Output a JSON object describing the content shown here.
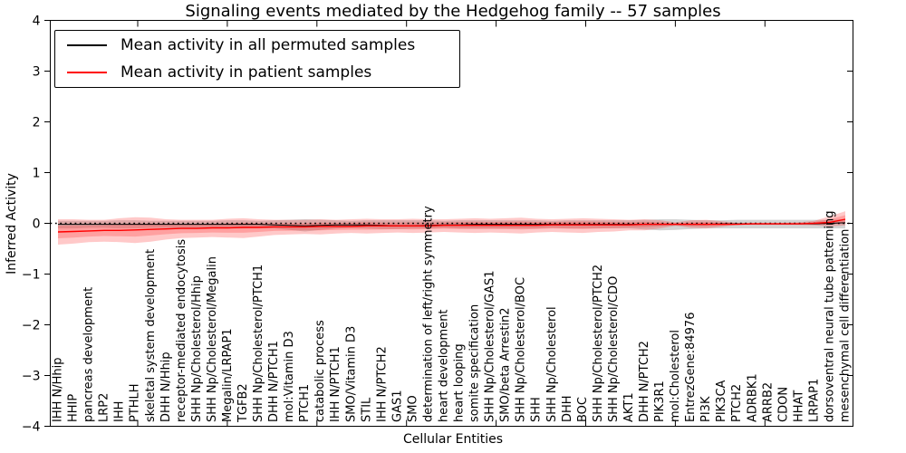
{
  "chart_data": {
    "type": "line",
    "title": "Signaling events mediated by the Hedgehog family -- 57 samples",
    "xlabel": "Cellular Entities",
    "ylabel": "Inferred Activity",
    "ylim": [
      -4,
      4
    ],
    "yticks": [
      4,
      3,
      2,
      1,
      0,
      -1,
      -2,
      -3,
      -4
    ],
    "grid": false,
    "zero_line": {
      "style": "dotted",
      "color": "#000000",
      "y": 0
    },
    "legend": {
      "position": "upper-left",
      "entries": [
        {
          "label": "Mean activity in all permuted samples",
          "color": "#000000"
        },
        {
          "label": "Mean activity in patient samples",
          "color": "#ff0000"
        }
      ]
    },
    "categories": [
      "IHH N/Hhip",
      "HHIP",
      "pancreas development",
      "LRP2",
      "IHH",
      "PTHLH",
      "skeletal system development",
      "DHH N/Hhip",
      "receptor-mediated endocytosis",
      "SHH Np/Cholesterol/Hhip",
      "SHH Np/Cholesterol/Megalin",
      "Megalin/LRPAP1",
      "TGFB2",
      "SHH Np/Cholesterol/PTCH1",
      "DHH N/PTCH1",
      "mol:Vitamin D3",
      "PTCH1",
      "catabolic process",
      "IHH N/PTCH1",
      "SMO/Vitamin D3",
      "STIL",
      "IHH N/PTCH2",
      "GAS1",
      "SMO",
      "determination of left/right symmetry",
      "heart development",
      "heart looping",
      "somite specification",
      "SHH Np/Cholesterol/GAS1",
      "SMO/beta Arrestin2",
      "SHH Np/Cholesterol/BOC",
      "SHH",
      "SHH Np/Cholesterol",
      "DHH",
      "BOC",
      "SHH Np/Cholesterol/PTCH2",
      "SHH Np/Cholesterol/CDO",
      "AKT1",
      "DHH N/PTCH2",
      "PIK3R1",
      "mol:Cholesterol",
      "EntrezGene:84976",
      "PI3K",
      "PIK3CA",
      "PTCH2",
      "ADRBK1",
      "ARRB2",
      "CDON",
      "HHAT",
      "LRPAP1",
      "dorsoventral neural tube patterning",
      "mesenchymal cell differentiation"
    ],
    "series": [
      {
        "name": "Mean activity in all permuted samples",
        "color": "#000000",
        "band_color": "rgba(130,130,130,0.35)",
        "values": [
          -0.02,
          -0.02,
          -0.02,
          -0.02,
          -0.02,
          -0.02,
          -0.02,
          -0.02,
          -0.02,
          -0.02,
          -0.02,
          -0.02,
          -0.02,
          -0.02,
          -0.03,
          -0.04,
          -0.05,
          -0.04,
          -0.03,
          -0.03,
          -0.03,
          -0.04,
          -0.05,
          -0.05,
          -0.04,
          -0.03,
          -0.03,
          -0.02,
          -0.02,
          -0.02,
          -0.02,
          -0.02,
          -0.02,
          -0.02,
          -0.02,
          -0.02,
          -0.02,
          -0.02,
          -0.02,
          -0.02,
          -0.02,
          -0.02,
          -0.02,
          -0.01,
          -0.01,
          -0.01,
          -0.01,
          -0.01,
          -0.01,
          -0.01,
          0.0,
          0.01
        ],
        "band_upper": [
          0.05,
          0.05,
          0.05,
          0.05,
          0.06,
          0.06,
          0.05,
          0.05,
          0.05,
          0.05,
          0.05,
          0.06,
          0.06,
          0.05,
          0.06,
          0.07,
          0.08,
          0.07,
          0.06,
          0.05,
          0.06,
          0.06,
          0.06,
          0.06,
          0.06,
          0.05,
          0.06,
          0.06,
          0.06,
          0.06,
          0.06,
          0.06,
          0.05,
          0.06,
          0.06,
          0.06,
          0.06,
          0.06,
          0.07,
          0.08,
          0.08,
          0.07,
          0.06,
          0.06,
          0.07,
          0.07,
          0.07,
          0.07,
          0.07,
          0.07,
          0.07,
          0.08
        ],
        "band_lower": [
          -0.1,
          -0.1,
          -0.09,
          -0.09,
          -0.1,
          -0.1,
          -0.09,
          -0.09,
          -0.09,
          -0.09,
          -0.09,
          -0.1,
          -0.1,
          -0.09,
          -0.1,
          -0.13,
          -0.16,
          -0.13,
          -0.1,
          -0.09,
          -0.1,
          -0.11,
          -0.11,
          -0.1,
          -0.1,
          -0.09,
          -0.1,
          -0.1,
          -0.1,
          -0.1,
          -0.1,
          -0.1,
          -0.09,
          -0.1,
          -0.1,
          -0.1,
          -0.1,
          -0.1,
          -0.12,
          -0.14,
          -0.13,
          -0.11,
          -0.1,
          -0.1,
          -0.1,
          -0.1,
          -0.1,
          -0.1,
          -0.1,
          -0.1,
          -0.1,
          -0.1
        ]
      },
      {
        "name": "Mean activity in patient samples",
        "color": "#ff0000",
        "band_color": "rgba(255,40,40,0.25)",
        "values": [
          -0.17,
          -0.16,
          -0.15,
          -0.14,
          -0.14,
          -0.13,
          -0.12,
          -0.11,
          -0.1,
          -0.1,
          -0.09,
          -0.09,
          -0.08,
          -0.08,
          -0.07,
          -0.07,
          -0.07,
          -0.06,
          -0.06,
          -0.06,
          -0.05,
          -0.05,
          -0.05,
          -0.05,
          -0.05,
          -0.04,
          -0.04,
          -0.04,
          -0.04,
          -0.04,
          -0.04,
          -0.04,
          -0.03,
          -0.03,
          -0.03,
          -0.03,
          -0.03,
          -0.03,
          -0.02,
          -0.02,
          -0.02,
          -0.02,
          -0.02,
          -0.02,
          -0.02,
          -0.01,
          -0.01,
          -0.01,
          -0.01,
          0.0,
          0.02,
          0.08
        ],
        "band_upper": [
          0.08,
          0.08,
          0.07,
          0.07,
          0.1,
          0.12,
          0.11,
          0.08,
          0.07,
          0.07,
          0.07,
          0.09,
          0.1,
          0.08,
          0.07,
          0.07,
          0.07,
          0.08,
          0.07,
          0.08,
          0.09,
          0.08,
          0.08,
          0.09,
          0.08,
          0.08,
          0.09,
          0.1,
          0.09,
          0.1,
          0.11,
          0.09,
          0.08,
          0.09,
          0.1,
          0.09,
          0.08,
          0.07,
          0.08,
          0.06,
          0.02,
          0.06,
          0.07,
          0.04,
          0.01,
          0.01,
          0.01,
          0.01,
          0.02,
          0.05,
          0.14,
          0.24
        ],
        "band_lower": [
          -0.42,
          -0.4,
          -0.37,
          -0.36,
          -0.37,
          -0.39,
          -0.36,
          -0.32,
          -0.29,
          -0.28,
          -0.27,
          -0.28,
          -0.29,
          -0.26,
          -0.23,
          -0.22,
          -0.21,
          -0.22,
          -0.2,
          -0.19,
          -0.2,
          -0.19,
          -0.18,
          -0.19,
          -0.18,
          -0.17,
          -0.18,
          -0.19,
          -0.18,
          -0.19,
          -0.2,
          -0.18,
          -0.17,
          -0.18,
          -0.19,
          -0.17,
          -0.16,
          -0.14,
          -0.14,
          -0.1,
          -0.05,
          -0.09,
          -0.1,
          -0.07,
          -0.03,
          -0.03,
          -0.03,
          -0.03,
          -0.03,
          -0.04,
          -0.06,
          -0.04
        ]
      }
    ]
  }
}
